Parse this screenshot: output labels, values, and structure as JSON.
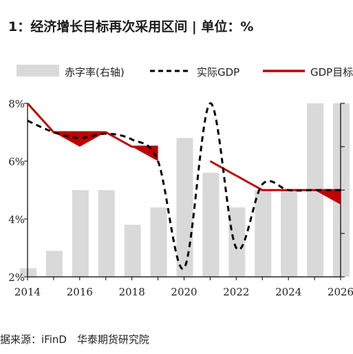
{
  "title": "1：经济增长目标再次采用区间 | 单位：%",
  "source": "据来源：iFinD　华泰期货研究院",
  "colors": {
    "bar": "#d9d9d9",
    "actual": "#000000",
    "target": "#c00000",
    "axis": "#000000"
  },
  "chart_data": {
    "type": "bar+line",
    "categories": [
      "2014",
      "2015",
      "2016",
      "2017",
      "2018",
      "2019",
      "2020",
      "2021",
      "2022",
      "2023",
      "2024",
      "2025",
      "2026"
    ],
    "x_tick_labels": [
      "2014",
      "2016",
      "2018",
      "2020",
      "2022",
      "2024",
      "2026"
    ],
    "ylabel": "",
    "ylim": [
      2,
      8
    ],
    "y_tick_labels": [
      "2%",
      "4%",
      "6%",
      "8%"
    ],
    "y2lim": [
      2,
      4
    ],
    "legend": {
      "position": "top",
      "entries": [
        "赤字率(右轴)",
        "实际GDP",
        "GDP目标"
      ]
    },
    "series": [
      {
        "name": "赤字率(右轴)",
        "kind": "bar",
        "axis": "right",
        "values": [
          2.1,
          2.3,
          3.0,
          3.0,
          2.6,
          2.8,
          3.6,
          3.2,
          2.8,
          3.0,
          3.0,
          4.0,
          4.0
        ]
      },
      {
        "name": "实际GDP",
        "kind": "line",
        "style": "dashed",
        "axis": "left",
        "values": [
          7.4,
          7.0,
          6.8,
          6.95,
          6.75,
          6.0,
          2.3,
          8.0,
          3.0,
          5.2,
          5.0,
          5.0,
          5.0
        ]
      },
      {
        "name": "GDP目标",
        "kind": "band",
        "axis": "left",
        "upper": [
          8.0,
          7.0,
          7.0,
          7.0,
          6.5,
          6.5,
          null,
          6.0,
          5.5,
          5.0,
          5.0,
          5.0,
          5.0
        ],
        "lower": [
          8.0,
          7.0,
          6.5,
          7.0,
          6.5,
          6.0,
          null,
          6.0,
          5.5,
          5.0,
          5.0,
          5.0,
          4.5
        ]
      }
    ]
  }
}
